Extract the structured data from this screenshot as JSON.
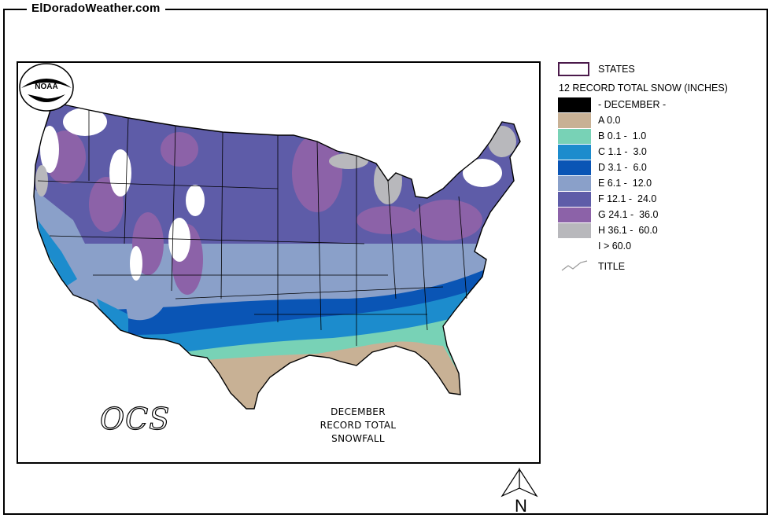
{
  "header": {
    "site_title": "ElDoradoWeather.com"
  },
  "map": {
    "caption_line1": "DECEMBER",
    "caption_line2": "RECORD TOTAL SNOWFALL",
    "logos": {
      "noaa_text": "NOAA",
      "ocs_text": "OCS"
    }
  },
  "legend": {
    "states_label": "STATES",
    "title": "12 RECORD TOTAL SNOW (INCHES)",
    "items": [
      {
        "label": "- DECEMBER -",
        "color": "#000000"
      },
      {
        "label": "A 0.0",
        "color": "#c8b195"
      },
      {
        "label": "B 0.1 -  1.0",
        "color": "#78d2b6"
      },
      {
        "label": "C 1.1 -  3.0",
        "color": "#1c8ccd"
      },
      {
        "label": "D 3.1 -  6.0",
        "color": "#0a55b5"
      },
      {
        "label": "E 6.1 -  12.0",
        "color": "#8aa0c9"
      },
      {
        "label": "F 12.1 -  24.0",
        "color": "#5e5ca8"
      },
      {
        "label": "G 24.1 -  36.0",
        "color": "#8c62a8"
      },
      {
        "label": "H 36.1 -  60.0",
        "color": "#b8b8bc"
      },
      {
        "label": "I > 60.0",
        "color": "#ffffff"
      }
    ],
    "title_line_label": "TITLE"
  },
  "north_arrow": {
    "label": "N"
  }
}
